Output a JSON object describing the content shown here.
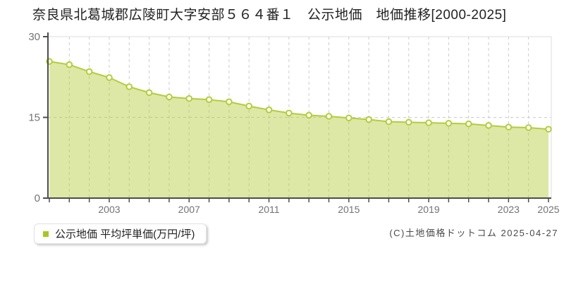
{
  "title": "奈良県北葛城郡広陵町大字安部５６４番１　公示地価　地価推移[2000-2025]",
  "legend": {
    "label": "公示地価 平均坪単価(万円/坪)",
    "marker_color": "#a6c822"
  },
  "copyright": "(C)土地価格ドットコム 2025-04-27",
  "chart_data": {
    "type": "area",
    "title": "奈良県北葛城郡広陵町大字安部５６４番１ 公示地価 地価推移[2000-2025]",
    "series_name": "公示地価 平均坪単価(万円/坪)",
    "x": [
      2000,
      2001,
      2002,
      2003,
      2004,
      2005,
      2006,
      2007,
      2008,
      2009,
      2010,
      2011,
      2012,
      2013,
      2014,
      2015,
      2016,
      2017,
      2018,
      2019,
      2020,
      2021,
      2022,
      2023,
      2024,
      2025
    ],
    "values": [
      25.4,
      24.8,
      23.5,
      22.4,
      20.7,
      19.6,
      18.8,
      18.5,
      18.3,
      17.9,
      17.1,
      16.4,
      15.8,
      15.4,
      15.2,
      14.9,
      14.6,
      14.2,
      14.1,
      14.0,
      13.9,
      13.8,
      13.5,
      13.2,
      13.1,
      12.8
    ],
    "ylabel": "万円/坪",
    "xlabel": "",
    "ylim": [
      0,
      30
    ],
    "yticks": [
      0,
      15,
      30
    ],
    "xtick_labels": [
      "2003",
      "2007",
      "2011",
      "2015",
      "2019",
      "2023",
      "2025"
    ],
    "xtick_years": [
      2003,
      2007,
      2011,
      2015,
      2019,
      2023,
      2025
    ],
    "grid": "dashed, every year vertical, horizontal at 15",
    "legend_position": "bottom-left",
    "colors": {
      "line": "#b3cd3a",
      "fill": "#b3cd3a",
      "fill_opacity": 0.45,
      "marker_fill": "#ffffff",
      "gridline": "#cccccc",
      "frame": "#dddddd",
      "axis": "#4d4d4d",
      "tick_label": "#737373"
    }
  }
}
